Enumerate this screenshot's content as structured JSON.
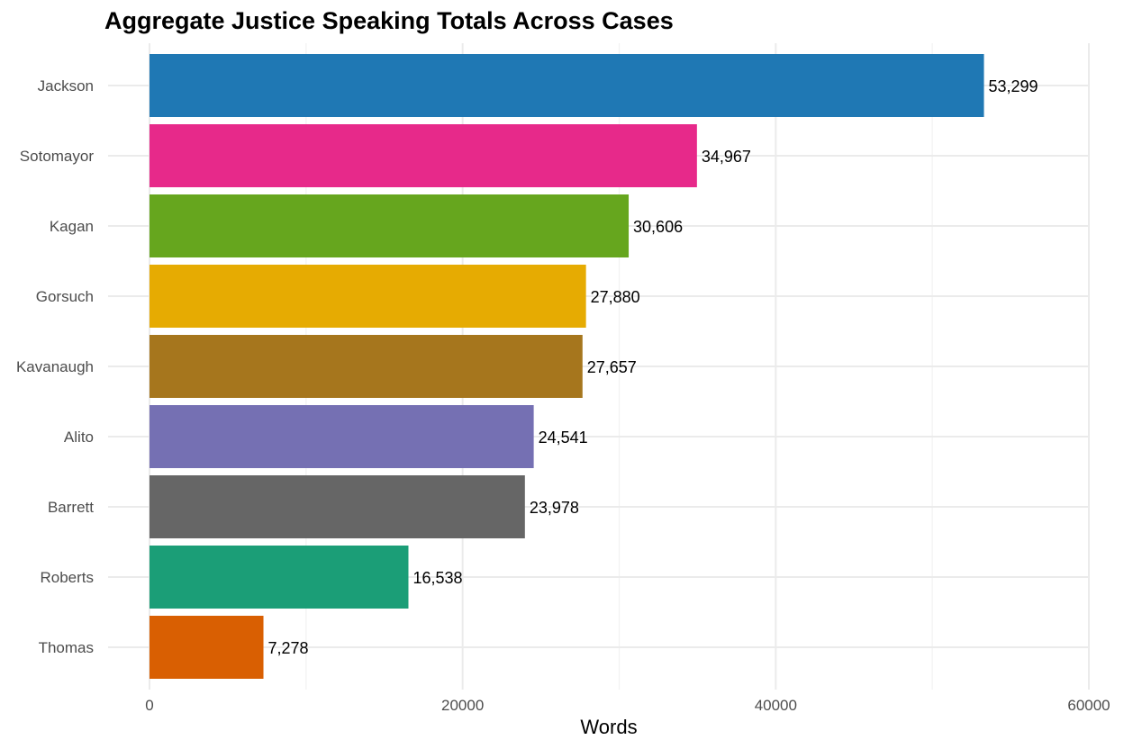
{
  "chart_data": {
    "type": "bar",
    "orientation": "horizontal",
    "title": "Aggregate Justice Speaking Totals Across Cases",
    "xlabel": "Words",
    "ylabel": "",
    "categories": [
      "Jackson",
      "Sotomayor",
      "Kagan",
      "Gorsuch",
      "Kavanaugh",
      "Alito",
      "Barrett",
      "Roberts",
      "Thomas"
    ],
    "values": [
      53299,
      34967,
      30606,
      27880,
      27657,
      24541,
      23978,
      16538,
      7278
    ],
    "value_labels": [
      "53,299",
      "34,967",
      "30,606",
      "27,880",
      "27,657",
      "24,541",
      "23,978",
      "16,538",
      "7,278"
    ],
    "colors": [
      "#1F78B4",
      "#E7298A",
      "#66A61E",
      "#E6AB02",
      "#A6761D",
      "#7570B3",
      "#666666",
      "#1B9E77",
      "#D95F02"
    ],
    "xlim": [
      0,
      60000
    ],
    "xticks": [
      0,
      20000,
      40000,
      60000
    ],
    "xtick_labels": [
      "0",
      "20000",
      "40000",
      "60000"
    ],
    "grid": true,
    "legend": "none"
  }
}
